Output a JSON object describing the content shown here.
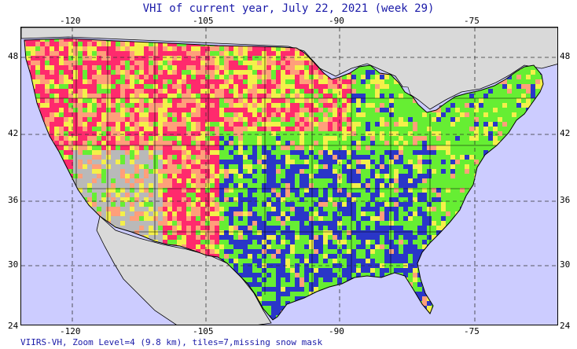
{
  "title": "VHI of current year, July 22, 2021 (week 29)",
  "footer": "VIIRS-VH, Zoom Level=4 (9.8 km), tiles=7,missing snow mask",
  "axes": {
    "lon_ticks": [
      "-120",
      "-105",
      "-90",
      "-75"
    ],
    "lat_ticks": [
      "48",
      "42",
      "36",
      "30",
      "24"
    ]
  },
  "colors": {
    "ocean": "#ccccff",
    "land_outside": "#d9d9d9",
    "very_stressed": "#ff2a6d",
    "stressed": "#ff9f7a",
    "fair": "#f4f04a",
    "healthy": "#66ee33",
    "very_healthy": "#2a36c8",
    "no_data": "#b9b9b9"
  }
}
